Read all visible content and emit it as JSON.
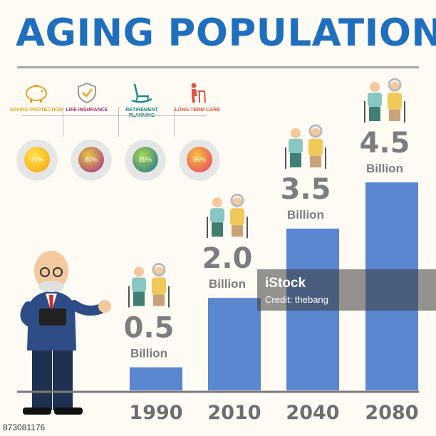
{
  "title": "AGING POPULATION",
  "icons": [
    {
      "name": "piggy-bank-icon",
      "label": "SAVING PROTECTION",
      "color": "#e8a325",
      "percent": 75,
      "percent_label": "75%"
    },
    {
      "name": "shield-check-icon",
      "label": "LIFE INSURANCE",
      "color": "#a52a6b",
      "percent": 80,
      "percent_label": "80%"
    },
    {
      "name": "rocking-chair-icon",
      "label": "RETIREMENT PLANNING",
      "color": "#1a8a8c",
      "percent": 85,
      "percent_label": "85%"
    },
    {
      "name": "elderly-walker-icon",
      "label": "LONG TERM CARE",
      "color": "#e2553f",
      "percent": 95,
      "percent_label": "95%"
    }
  ],
  "chart_data": {
    "type": "bar",
    "title": "",
    "categories": [
      "1990",
      "2010",
      "2040",
      "2080"
    ],
    "values": [
      0.5,
      2.0,
      3.5,
      4.5
    ],
    "value_labels": [
      "0.5",
      "2.0",
      "3.5",
      "4.5"
    ],
    "unit": "Billion",
    "xlabel": "",
    "ylabel": "",
    "bar_color": "#5b86d0"
  },
  "watermark": {
    "logo": "iStock",
    "credit": "Credit: thebang"
  },
  "image_id": "873081176"
}
